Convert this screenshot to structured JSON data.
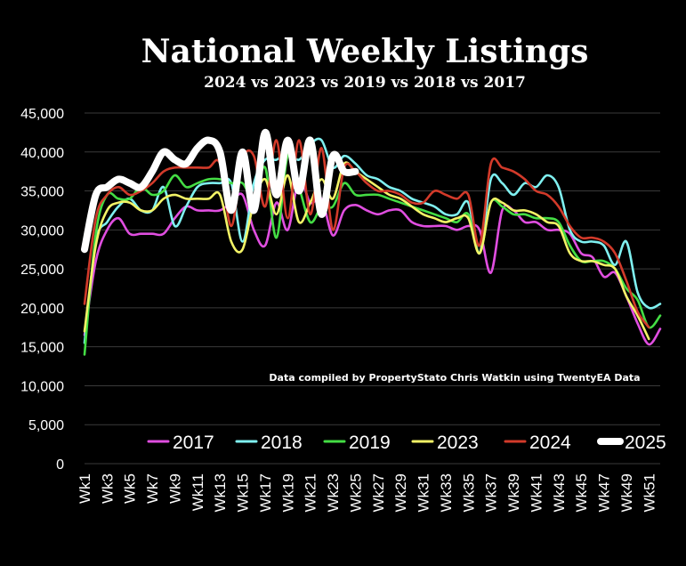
{
  "chart_data": {
    "type": "line",
    "title": "National Weekly Listings",
    "subtitle": "2024 vs 2023 vs 2019 vs 2018 vs 2017",
    "annotation": "Data compiled by PropertyStato Chris Watkin using TwentyEA Data",
    "ylim": [
      0,
      45000
    ],
    "y_ticks": [
      "0",
      "5,000",
      "10,000",
      "15,000",
      "20,000",
      "25,000",
      "30,000",
      "35,000",
      "40,000",
      "45,000"
    ],
    "x_tick_labels": [
      "Wk1",
      "Wk3",
      "Wk5",
      "Wk7",
      "Wk9",
      "Wk11",
      "Wk13",
      "Wk15",
      "Wk17",
      "Wk19",
      "Wk21",
      "Wk23",
      "Wk25",
      "Wk27",
      "Wk29",
      "Wk31",
      "Wk33",
      "Wk35",
      "Wk37",
      "Wk39",
      "Wk41",
      "Wk43",
      "Wk45",
      "Wk47",
      "Wk49",
      "Wk51"
    ],
    "weeks": 52,
    "grid": "horizontal",
    "legend": "bottom",
    "series": [
      {
        "name": "2017",
        "color": "#e04ee0",
        "values": [
          16500,
          26000,
          30000,
          31500,
          29500,
          29500,
          29500,
          29500,
          31500,
          33000,
          32500,
          32500,
          32500,
          33500,
          34500,
          30000,
          28000,
          33500,
          30000,
          36500,
          33500,
          34000,
          29300,
          32500,
          33200,
          32500,
          32000,
          32500,
          32500,
          31000,
          30500,
          30500,
          30500,
          30000,
          30500,
          30000,
          24500,
          32500,
          32500,
          31000,
          31000,
          30000,
          30000,
          29500,
          27000,
          26500,
          24000,
          24500,
          21500,
          18000,
          15300,
          17300
        ]
      },
      {
        "name": "2018",
        "color": "#7ff0f0",
        "values": [
          15500,
          28500,
          31000,
          33000,
          34000,
          32500,
          32500,
          35500,
          30500,
          33000,
          35500,
          36000,
          36000,
          36000,
          28500,
          36000,
          39000,
          39000,
          40000,
          39000,
          41000,
          41500,
          38000,
          39500,
          38500,
          37000,
          36500,
          35500,
          35000,
          34000,
          33500,
          33000,
          32000,
          32000,
          33500,
          27000,
          36500,
          36000,
          34500,
          36000,
          35500,
          37000,
          35500,
          30000,
          28500,
          28500,
          28000,
          25500,
          28500,
          22000,
          20000,
          20500
        ]
      },
      {
        "name": "2019",
        "color": "#44dd44",
        "values": [
          14000,
          29500,
          34500,
          34000,
          34000,
          35500,
          34500,
          35000,
          37000,
          35500,
          36000,
          36500,
          36500,
          36000,
          36000,
          34000,
          38000,
          29000,
          39500,
          35500,
          31000,
          33000,
          33000,
          36000,
          34500,
          34500,
          34500,
          34000,
          33500,
          33000,
          32500,
          32000,
          31500,
          31000,
          32000,
          27000,
          33500,
          33000,
          32000,
          32000,
          31500,
          31500,
          31000,
          28000,
          26000,
          26000,
          26000,
          25000,
          22500,
          21000,
          17500,
          19000
        ]
      },
      {
        "name": "2023",
        "color": "#f3f366",
        "values": [
          17000,
          28000,
          32500,
          33500,
          33500,
          32500,
          32500,
          34000,
          34500,
          34000,
          34000,
          34000,
          34500,
          28500,
          27500,
          33500,
          36500,
          32000,
          37000,
          31000,
          33500,
          36500,
          34000,
          38500,
          37500,
          36500,
          35500,
          34500,
          34000,
          33000,
          32000,
          31500,
          31000,
          31500,
          31500,
          27000,
          33500,
          33500,
          32500,
          32500,
          32000,
          31000,
          30500,
          27000,
          26000,
          26000,
          25500,
          25000,
          21500,
          19000,
          16000,
          null
        ]
      },
      {
        "name": "2024",
        "color": "#d23a2a",
        "values": [
          20500,
          31500,
          34500,
          35500,
          34500,
          35000,
          36000,
          37500,
          38000,
          38000,
          38000,
          38000,
          38500,
          30500,
          39000,
          39500,
          33000,
          41500,
          31500,
          41500,
          32000,
          40500,
          30000,
          38000,
          37500,
          36000,
          35000,
          35000,
          34500,
          33500,
          33500,
          35000,
          34500,
          34000,
          34500,
          28000,
          38500,
          38000,
          37500,
          36500,
          35000,
          34500,
          33000,
          30500,
          29000,
          29000,
          28500,
          27000,
          23500,
          19500,
          17500,
          null
        ]
      },
      {
        "name": "2025",
        "color": "#ffffff",
        "values": [
          27500,
          34500,
          35500,
          36500,
          36000,
          35500,
          37500,
          40000,
          39000,
          38500,
          40500,
          41500,
          40000,
          32500,
          40000,
          32500,
          42500,
          34500,
          41500,
          35000,
          41500,
          32000,
          39500,
          37500,
          37500,
          null,
          null,
          null,
          null,
          null,
          null,
          null,
          null,
          null,
          null,
          null,
          null,
          null,
          null,
          null,
          null,
          null,
          null,
          null,
          null,
          null,
          null,
          null,
          null,
          null,
          null,
          null
        ]
      }
    ]
  }
}
